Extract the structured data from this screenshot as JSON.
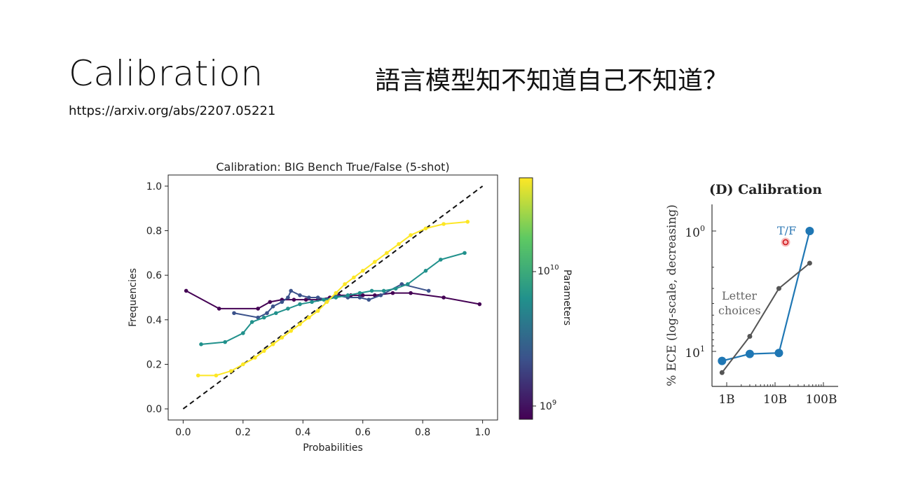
{
  "slide": {
    "title": "Calibration",
    "subtitle": "語言模型知不知道自己不知道？",
    "url": "https://arxiv.org/abs/2207.05221"
  },
  "chart_data": [
    {
      "type": "line",
      "title": "Calibration: BIG Bench True/False (5-shot)",
      "xlabel": "Probabilities",
      "ylabel": "Frequencies",
      "xlim": [
        -0.05,
        1.05
      ],
      "ylim": [
        -0.05,
        1.05
      ],
      "xticks": [
        "0.0",
        "0.2",
        "0.4",
        "0.6",
        "0.8",
        "1.0"
      ],
      "yticks": [
        "0.0",
        "0.2",
        "0.4",
        "0.6",
        "0.8",
        "1.0"
      ],
      "reference_line": [
        [
          0,
          0
        ],
        [
          1,
          1
        ]
      ],
      "colorbar": {
        "label": "Parameters",
        "ticks": [
          "10^9",
          "10^10"
        ],
        "colormap": "viridis"
      },
      "series": [
        {
          "color": "#440154",
          "points": [
            [
              0.01,
              0.53
            ],
            [
              0.12,
              0.45
            ],
            [
              0.25,
              0.45
            ],
            [
              0.29,
              0.48
            ],
            [
              0.33,
              0.49
            ],
            [
              0.37,
              0.49
            ],
            [
              0.41,
              0.49
            ],
            [
              0.45,
              0.49
            ],
            [
              0.49,
              0.5
            ],
            [
              0.52,
              0.51
            ],
            [
              0.56,
              0.51
            ],
            [
              0.6,
              0.51
            ],
            [
              0.64,
              0.51
            ],
            [
              0.7,
              0.52
            ],
            [
              0.76,
              0.52
            ],
            [
              0.87,
              0.5
            ],
            [
              0.99,
              0.47
            ]
          ]
        },
        {
          "color": "#3b528b",
          "points": [
            [
              0.17,
              0.43
            ],
            [
              0.25,
              0.41
            ],
            [
              0.28,
              0.43
            ],
            [
              0.3,
              0.46
            ],
            [
              0.33,
              0.48
            ],
            [
              0.35,
              0.5
            ],
            [
              0.36,
              0.53
            ],
            [
              0.39,
              0.51
            ],
            [
              0.42,
              0.5
            ],
            [
              0.45,
              0.5
            ],
            [
              0.48,
              0.49
            ],
            [
              0.51,
              0.51
            ],
            [
              0.55,
              0.5
            ],
            [
              0.59,
              0.5
            ],
            [
              0.62,
              0.49
            ],
            [
              0.66,
              0.51
            ],
            [
              0.73,
              0.56
            ],
            [
              0.82,
              0.53
            ]
          ]
        },
        {
          "color": "#21918c",
          "points": [
            [
              0.06,
              0.29
            ],
            [
              0.14,
              0.3
            ],
            [
              0.2,
              0.34
            ],
            [
              0.23,
              0.39
            ],
            [
              0.27,
              0.41
            ],
            [
              0.31,
              0.43
            ],
            [
              0.35,
              0.45
            ],
            [
              0.39,
              0.47
            ],
            [
              0.43,
              0.48
            ],
            [
              0.47,
              0.49
            ],
            [
              0.51,
              0.5
            ],
            [
              0.55,
              0.51
            ],
            [
              0.59,
              0.52
            ],
            [
              0.63,
              0.53
            ],
            [
              0.67,
              0.53
            ],
            [
              0.71,
              0.54
            ],
            [
              0.75,
              0.56
            ],
            [
              0.81,
              0.62
            ],
            [
              0.86,
              0.67
            ],
            [
              0.94,
              0.7
            ]
          ]
        },
        {
          "color": "#fde725",
          "points": [
            [
              0.05,
              0.15
            ],
            [
              0.11,
              0.15
            ],
            [
              0.16,
              0.17
            ],
            [
              0.2,
              0.2
            ],
            [
              0.24,
              0.23
            ],
            [
              0.27,
              0.26
            ],
            [
              0.3,
              0.29
            ],
            [
              0.33,
              0.32
            ],
            [
              0.36,
              0.35
            ],
            [
              0.39,
              0.38
            ],
            [
              0.42,
              0.41
            ],
            [
              0.45,
              0.44
            ],
            [
              0.48,
              0.48
            ],
            [
              0.51,
              0.52
            ],
            [
              0.54,
              0.56
            ],
            [
              0.57,
              0.59
            ],
            [
              0.6,
              0.62
            ],
            [
              0.64,
              0.66
            ],
            [
              0.68,
              0.7
            ],
            [
              0.72,
              0.74
            ],
            [
              0.76,
              0.78
            ],
            [
              0.81,
              0.81
            ],
            [
              0.87,
              0.83
            ],
            [
              0.95,
              0.84
            ]
          ]
        }
      ]
    },
    {
      "type": "line",
      "title": "(D) Calibration",
      "ylabel": "% ECE (log-scale, decreasing)",
      "xscale": "log",
      "yscale": "log",
      "xticks": [
        "1B",
        "10B",
        "100B"
      ],
      "yticks": [
        "10^0",
        "10^1"
      ],
      "annotations": [
        "T/F",
        "Letter choices"
      ],
      "series": [
        {
          "name": "T/F",
          "color": "#1f77b4",
          "x": [
            0.8,
            3,
            12,
            52
          ],
          "y": [
            12,
            10.5,
            10.3,
            1
          ]
        },
        {
          "name": "Letter choices",
          "color": "#555555",
          "x": [
            0.8,
            3,
            12,
            52
          ],
          "y": [
            15,
            7.5,
            3,
            1.85
          ]
        }
      ]
    }
  ]
}
